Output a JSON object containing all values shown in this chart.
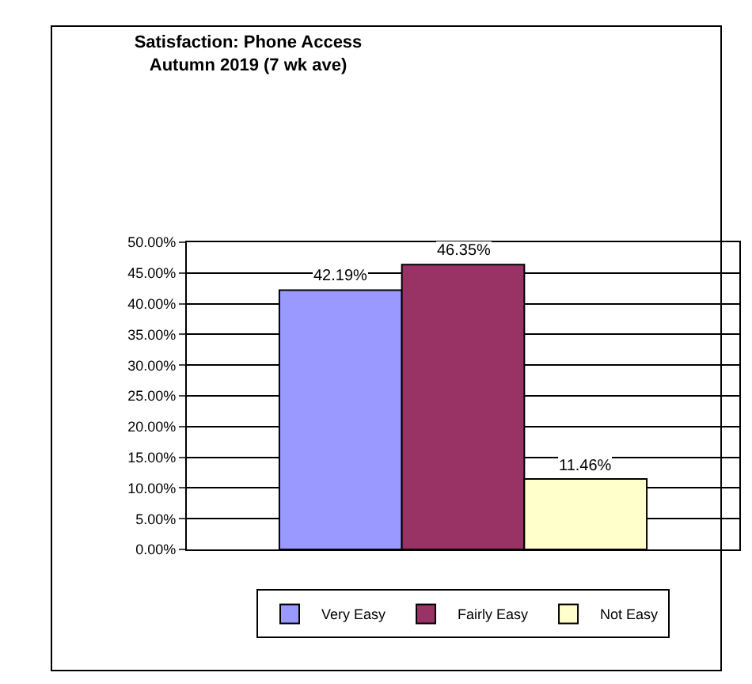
{
  "chart_data": {
    "type": "bar",
    "title": "Satisfaction: Phone Access\nAutumn 2019 (7 wk ave)",
    "categories": [
      null
    ],
    "series": [
      {
        "name": "Very Easy",
        "color": "#9999ff",
        "values": [
          42.19
        ],
        "value_labels": [
          "42.19%"
        ]
      },
      {
        "name": "Fairly Easy",
        "color": "#993366",
        "values": [
          46.35
        ],
        "value_labels": [
          "46.35%"
        ]
      },
      {
        "name": "Not Easy",
        "color": "#ffffcc",
        "values": [
          11.46
        ],
        "value_labels": [
          "11.46%"
        ]
      }
    ],
    "ylim": [
      0,
      50
    ],
    "yticks": [
      {
        "value": 0,
        "label": "0.00%"
      },
      {
        "value": 5,
        "label": "5.00%"
      },
      {
        "value": 10,
        "label": "10.00%"
      },
      {
        "value": 15,
        "label": "15.00%"
      },
      {
        "value": 20,
        "label": "20.00%"
      },
      {
        "value": 25,
        "label": "25.00%"
      },
      {
        "value": 30,
        "label": "30.00%"
      },
      {
        "value": 35,
        "label": "35.00%"
      },
      {
        "value": 40,
        "label": "40.00%"
      },
      {
        "value": 45,
        "label": "45.00%"
      },
      {
        "value": 50,
        "label": "50.00%"
      }
    ],
    "grid": "y",
    "legend": "bottom"
  }
}
